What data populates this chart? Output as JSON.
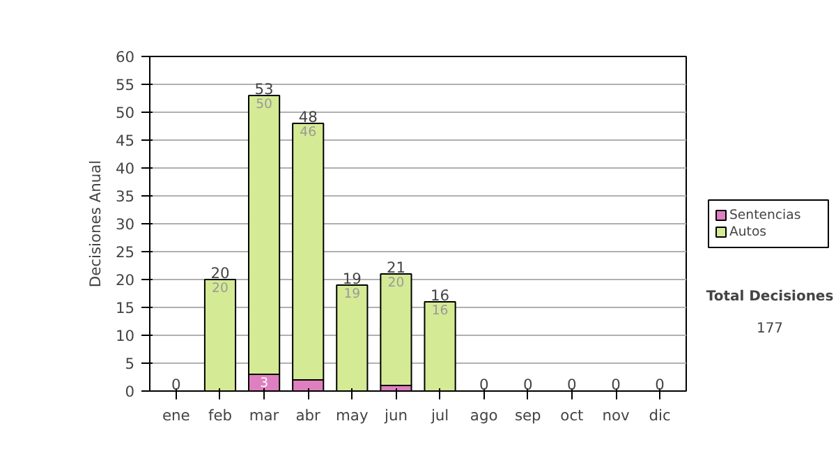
{
  "chart_data": {
    "type": "bar",
    "stacked": true,
    "ylabel": "Decisiones Anual",
    "categories": [
      "ene",
      "feb",
      "mar",
      "abr",
      "may",
      "jun",
      "jul",
      "ago",
      "sep",
      "oct",
      "nov",
      "dic"
    ],
    "series": [
      {
        "name": "Sentencias",
        "color": "#de80c0",
        "values": [
          0,
          0,
          3,
          2,
          0,
          1,
          0,
          0,
          0,
          0,
          0,
          0
        ],
        "value_labels": [
          null,
          null,
          "3",
          null,
          null,
          null,
          null,
          null,
          null,
          null,
          null,
          null
        ]
      },
      {
        "name": "Autos",
        "color": "#d5ea95",
        "values": [
          0,
          20,
          50,
          46,
          19,
          20,
          16,
          0,
          0,
          0,
          0,
          0
        ],
        "value_labels": [
          null,
          "20",
          "50",
          "46",
          "19",
          "20",
          "16",
          null,
          null,
          null,
          null,
          null
        ]
      }
    ],
    "totals": [
      "0",
      "20",
      "53",
      "48",
      "19",
      "21",
      "16",
      "0",
      "0",
      "0",
      "0",
      "0"
    ],
    "ylim": [
      0,
      60
    ],
    "yticks": [
      0,
      5,
      10,
      15,
      20,
      25,
      30,
      35,
      40,
      45,
      50,
      55,
      60
    ],
    "grid": "y",
    "legend": "right",
    "annotations": [
      "Total Decisiones",
      "177"
    ]
  }
}
